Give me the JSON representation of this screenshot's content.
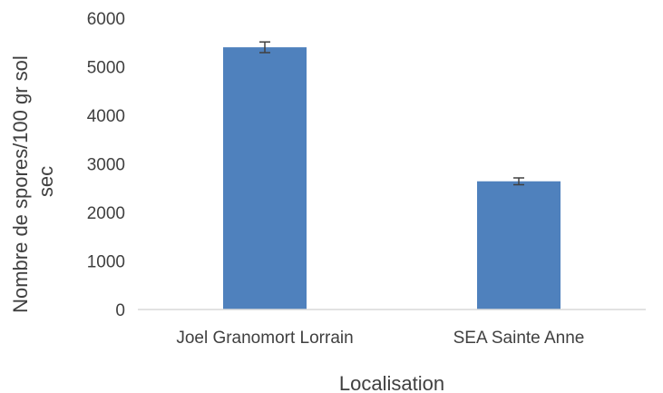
{
  "chart_data": {
    "type": "bar",
    "categories": [
      "Joel Granomort Lorrain",
      "SEA Sainte Anne"
    ],
    "values": [
      5400,
      2640
    ],
    "error": [
      110,
      70
    ],
    "xlabel": "Localisation",
    "ylabel_lines": [
      "Nombre de spores/100 gr sol",
      "sec"
    ],
    "ylim": [
      0,
      6000
    ],
    "yticks": [
      "0",
      "1000",
      "2000",
      "3000",
      "4000",
      "5000",
      "6000"
    ],
    "grid": false,
    "legend": "none",
    "colors": {
      "bar": "#4f81bd",
      "axis": "#d9d9d9",
      "error": "#404040"
    }
  }
}
